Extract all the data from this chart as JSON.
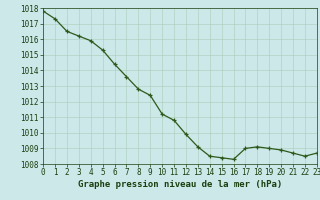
{
  "x": [
    0,
    1,
    2,
    3,
    4,
    5,
    6,
    7,
    8,
    9,
    10,
    11,
    12,
    13,
    14,
    15,
    16,
    17,
    18,
    19,
    20,
    21,
    22,
    23
  ],
  "y": [
    1017.8,
    1017.3,
    1016.5,
    1016.2,
    1015.9,
    1015.3,
    1014.4,
    1013.6,
    1012.8,
    1012.4,
    1011.2,
    1010.8,
    1009.9,
    1009.1,
    1008.5,
    1008.4,
    1008.3,
    1009.0,
    1009.1,
    1009.0,
    1008.9,
    1008.7,
    1008.5,
    1008.7
  ],
  "xlim": [
    0,
    23
  ],
  "ylim": [
    1008,
    1018
  ],
  "yticks": [
    1008,
    1009,
    1010,
    1011,
    1012,
    1013,
    1014,
    1015,
    1016,
    1017,
    1018
  ],
  "xticks": [
    0,
    1,
    2,
    3,
    4,
    5,
    6,
    7,
    8,
    9,
    10,
    11,
    12,
    13,
    14,
    15,
    16,
    17,
    18,
    19,
    20,
    21,
    22,
    23
  ],
  "line_color": "#2d5a1b",
  "marker": "+",
  "marker_size": 3,
  "bg_color": "#cce8e8",
  "plot_bg_color": "#cce8e8",
  "grid_color": "#aaccbb",
  "xlabel": "Graphe pression niveau de la mer (hPa)",
  "xlabel_color": "#1a4010",
  "tick_color": "#1a4010",
  "xlabel_fontsize": 6.5,
  "tick_fontsize": 5.5,
  "linewidth": 0.9
}
